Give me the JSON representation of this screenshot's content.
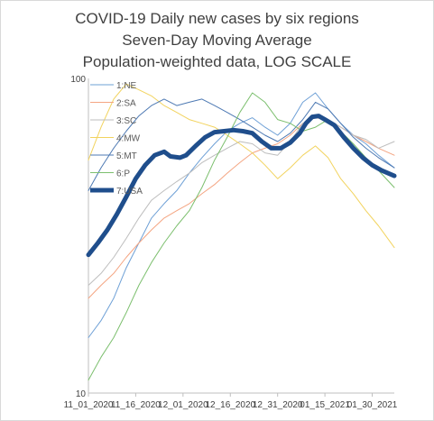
{
  "chart_data": {
    "type": "line",
    "title": "COVID-19 Daily new cases by six regions",
    "subtitle": "Seven-Day Moving Average",
    "subtitle2": "Population-weighted data, LOG SCALE",
    "xlabel": "",
    "ylabel": "",
    "yscale": "log",
    "ylim": [
      10,
      100
    ],
    "xlim": [
      "2020-11-01",
      "2021-02-06"
    ],
    "y_ticks": [
      "10",
      "100"
    ],
    "x_ticks": [
      {
        "date": "2020-11-01",
        "label": "11_01_2020"
      },
      {
        "date": "2020-11-16",
        "label": "11_16_2020"
      },
      {
        "date": "2020-12-01",
        "label": "12_01_2020"
      },
      {
        "date": "2020-12-16",
        "label": "12_16_2020"
      },
      {
        "date": "2020-12-31",
        "label": "12_31_2020"
      },
      {
        "date": "2021-01-15",
        "label": "01_15_2021"
      },
      {
        "date": "2021-01-30",
        "label": "01_30_2021"
      }
    ],
    "grid": false,
    "legend_position": "top-left",
    "series": [
      {
        "name": "1:NE",
        "color": "#6ea0d6",
        "width": 1,
        "points": [
          [
            "2020-11-01",
            15.0
          ],
          [
            "2020-11-05",
            17.0
          ],
          [
            "2020-11-09",
            20.0
          ],
          [
            "2020-11-13",
            25.0
          ],
          [
            "2020-11-17",
            30.0
          ],
          [
            "2020-11-21",
            36.0
          ],
          [
            "2020-11-25",
            40.0
          ],
          [
            "2020-11-29",
            44.0
          ],
          [
            "2020-12-03",
            50.0
          ],
          [
            "2020-12-07",
            56.0
          ],
          [
            "2020-12-11",
            62.0
          ],
          [
            "2020-12-15",
            68.0
          ],
          [
            "2020-12-19",
            72.0
          ],
          [
            "2020-12-23",
            75.0
          ],
          [
            "2020-12-27",
            70.0
          ],
          [
            "2020-12-31",
            66.0
          ],
          [
            "2021-01-04",
            72.0
          ],
          [
            "2021-01-08",
            84.0
          ],
          [
            "2021-01-12",
            90.0
          ],
          [
            "2021-01-16",
            80.0
          ],
          [
            "2021-01-20",
            72.0
          ],
          [
            "2021-01-24",
            66.0
          ],
          [
            "2021-01-28",
            62.0
          ],
          [
            "2021-02-01",
            57.0
          ],
          [
            "2021-02-06",
            52.0
          ]
        ]
      },
      {
        "name": "2:SA",
        "color": "#f4a582",
        "width": 1,
        "points": [
          [
            "2020-11-01",
            20.0
          ],
          [
            "2020-11-05",
            22.0
          ],
          [
            "2020-11-09",
            24.0
          ],
          [
            "2020-11-13",
            27.0
          ],
          [
            "2020-11-17",
            30.0
          ],
          [
            "2020-11-21",
            33.0
          ],
          [
            "2020-11-25",
            36.0
          ],
          [
            "2020-11-29",
            38.0
          ],
          [
            "2020-12-03",
            40.0
          ],
          [
            "2020-12-07",
            43.0
          ],
          [
            "2020-12-11",
            46.0
          ],
          [
            "2020-12-15",
            50.0
          ],
          [
            "2020-12-19",
            54.0
          ],
          [
            "2020-12-23",
            58.0
          ],
          [
            "2020-12-27",
            60.0
          ],
          [
            "2020-12-31",
            62.0
          ],
          [
            "2021-01-04",
            66.0
          ],
          [
            "2021-01-08",
            72.0
          ],
          [
            "2021-01-12",
            75.0
          ],
          [
            "2021-01-16",
            74.0
          ],
          [
            "2021-01-20",
            70.0
          ],
          [
            "2021-01-24",
            66.0
          ],
          [
            "2021-01-28",
            63.0
          ],
          [
            "2021-02-01",
            60.0
          ],
          [
            "2021-02-06",
            57.0
          ]
        ]
      },
      {
        "name": "3:SC",
        "color": "#bdbdbd",
        "width": 1,
        "points": [
          [
            "2020-11-01",
            22.0
          ],
          [
            "2020-11-05",
            24.0
          ],
          [
            "2020-11-09",
            27.0
          ],
          [
            "2020-11-13",
            31.0
          ],
          [
            "2020-11-17",
            36.0
          ],
          [
            "2020-11-21",
            41.0
          ],
          [
            "2020-11-25",
            44.0
          ],
          [
            "2020-11-29",
            47.0
          ],
          [
            "2020-12-03",
            50.0
          ],
          [
            "2020-12-07",
            54.0
          ],
          [
            "2020-12-11",
            57.0
          ],
          [
            "2020-12-15",
            60.0
          ],
          [
            "2020-12-19",
            63.0
          ],
          [
            "2020-12-23",
            62.0
          ],
          [
            "2020-12-27",
            58.0
          ],
          [
            "2020-12-31",
            57.0
          ],
          [
            "2021-01-04",
            63.0
          ],
          [
            "2021-01-08",
            72.0
          ],
          [
            "2021-01-12",
            76.0
          ],
          [
            "2021-01-16",
            74.0
          ],
          [
            "2021-01-20",
            70.0
          ],
          [
            "2021-01-24",
            66.0
          ],
          [
            "2021-01-28",
            64.0
          ],
          [
            "2021-02-01",
            60.0
          ],
          [
            "2021-02-06",
            63.0
          ]
        ]
      },
      {
        "name": "4:MW",
        "color": "#f2d35e",
        "width": 1,
        "points": [
          [
            "2020-11-01",
            55.0
          ],
          [
            "2020-11-05",
            70.0
          ],
          [
            "2020-11-09",
            86.0
          ],
          [
            "2020-11-13",
            96.0
          ],
          [
            "2020-11-17",
            92.0
          ],
          [
            "2020-11-21",
            88.0
          ],
          [
            "2020-11-25",
            82.0
          ],
          [
            "2020-11-29",
            78.0
          ],
          [
            "2020-12-03",
            74.0
          ],
          [
            "2020-12-07",
            72.0
          ],
          [
            "2020-12-11",
            70.0
          ],
          [
            "2020-12-15",
            66.0
          ],
          [
            "2020-12-19",
            62.0
          ],
          [
            "2020-12-23",
            58.0
          ],
          [
            "2020-12-27",
            53.0
          ],
          [
            "2020-12-31",
            48.0
          ],
          [
            "2021-01-04",
            52.0
          ],
          [
            "2021-01-08",
            57.0
          ],
          [
            "2021-01-12",
            61.0
          ],
          [
            "2021-01-16",
            56.0
          ],
          [
            "2021-01-20",
            48.0
          ],
          [
            "2021-01-24",
            43.0
          ],
          [
            "2021-01-28",
            38.0
          ],
          [
            "2021-02-01",
            34.0
          ],
          [
            "2021-02-06",
            29.0
          ]
        ]
      },
      {
        "name": "5:MT",
        "color": "#4d79b3",
        "width": 1,
        "points": [
          [
            "2020-11-01",
            44.0
          ],
          [
            "2020-11-05",
            52.0
          ],
          [
            "2020-11-09",
            60.0
          ],
          [
            "2020-11-13",
            68.0
          ],
          [
            "2020-11-17",
            76.0
          ],
          [
            "2020-11-21",
            82.0
          ],
          [
            "2020-11-25",
            86.0
          ],
          [
            "2020-11-29",
            82.0
          ],
          [
            "2020-12-03",
            84.0
          ],
          [
            "2020-12-07",
            86.0
          ],
          [
            "2020-12-11",
            82.0
          ],
          [
            "2020-12-15",
            78.0
          ],
          [
            "2020-12-19",
            74.0
          ],
          [
            "2020-12-23",
            70.0
          ],
          [
            "2020-12-27",
            66.0
          ],
          [
            "2020-12-31",
            63.0
          ],
          [
            "2021-01-04",
            67.0
          ],
          [
            "2021-01-08",
            74.0
          ],
          [
            "2021-01-12",
            84.0
          ],
          [
            "2021-01-16",
            80.0
          ],
          [
            "2021-01-20",
            72.0
          ],
          [
            "2021-01-24",
            65.0
          ],
          [
            "2021-01-28",
            60.0
          ],
          [
            "2021-02-01",
            56.0
          ],
          [
            "2021-02-06",
            52.0
          ]
        ]
      },
      {
        "name": "6:P",
        "color": "#7cbf6e",
        "width": 1,
        "points": [
          [
            "2020-11-01",
            11.0
          ],
          [
            "2020-11-05",
            13.0
          ],
          [
            "2020-11-09",
            15.0
          ],
          [
            "2020-11-13",
            18.0
          ],
          [
            "2020-11-17",
            22.0
          ],
          [
            "2020-11-21",
            26.0
          ],
          [
            "2020-11-25",
            30.0
          ],
          [
            "2020-11-29",
            34.0
          ],
          [
            "2020-12-03",
            38.0
          ],
          [
            "2020-12-07",
            45.0
          ],
          [
            "2020-12-11",
            55.0
          ],
          [
            "2020-12-15",
            65.0
          ],
          [
            "2020-12-19",
            78.0
          ],
          [
            "2020-12-23",
            90.0
          ],
          [
            "2020-12-27",
            84.0
          ],
          [
            "2020-12-31",
            74.0
          ],
          [
            "2021-01-04",
            72.0
          ],
          [
            "2021-01-08",
            68.0
          ],
          [
            "2021-01-12",
            70.0
          ],
          [
            "2021-01-16",
            74.0
          ],
          [
            "2021-01-20",
            68.0
          ],
          [
            "2021-01-24",
            62.0
          ],
          [
            "2021-01-28",
            56.0
          ],
          [
            "2021-02-01",
            51.0
          ],
          [
            "2021-02-06",
            45.0
          ]
        ]
      },
      {
        "name": "7:USA",
        "color": "#1f4e8c",
        "width": 5,
        "points": [
          [
            "2020-11-01",
            27.5
          ],
          [
            "2020-11-04",
            30.0
          ],
          [
            "2020-11-07",
            33.0
          ],
          [
            "2020-11-10",
            37.0
          ],
          [
            "2020-11-13",
            42.0
          ],
          [
            "2020-11-16",
            48.0
          ],
          [
            "2020-11-19",
            53.0
          ],
          [
            "2020-11-22",
            57.0
          ],
          [
            "2020-11-25",
            58.5
          ],
          [
            "2020-11-27",
            56.5
          ],
          [
            "2020-11-30",
            56.0
          ],
          [
            "2020-12-02",
            57.0
          ],
          [
            "2020-12-05",
            61.0
          ],
          [
            "2020-12-08",
            65.0
          ],
          [
            "2020-12-11",
            67.5
          ],
          [
            "2020-12-14",
            68.0
          ],
          [
            "2020-12-17",
            68.5
          ],
          [
            "2020-12-20",
            68.0
          ],
          [
            "2020-12-23",
            67.0
          ],
          [
            "2020-12-26",
            63.0
          ],
          [
            "2020-12-29",
            60.0
          ],
          [
            "2021-01-01",
            60.0
          ],
          [
            "2021-01-04",
            62.5
          ],
          [
            "2021-01-07",
            67.0
          ],
          [
            "2021-01-09",
            72.0
          ],
          [
            "2021-01-11",
            75.5
          ],
          [
            "2021-01-13",
            76.0
          ],
          [
            "2021-01-15",
            74.0
          ],
          [
            "2021-01-18",
            71.0
          ],
          [
            "2021-01-21",
            65.0
          ],
          [
            "2021-01-24",
            60.0
          ],
          [
            "2021-01-27",
            56.0
          ],
          [
            "2021-01-30",
            53.0
          ],
          [
            "2021-02-02",
            51.0
          ],
          [
            "2021-02-06",
            49.0
          ]
        ]
      }
    ]
  }
}
